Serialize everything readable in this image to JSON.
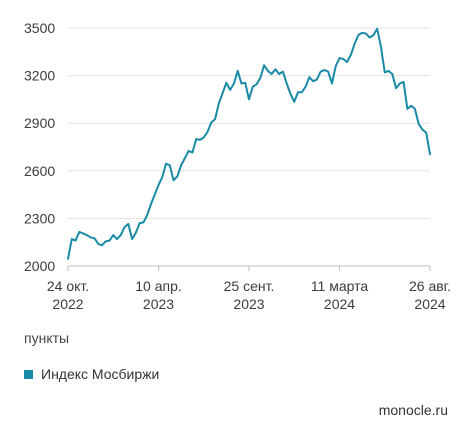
{
  "chart_data": {
    "type": "line",
    "series": [
      {
        "name": "Индекс Мосбиржи",
        "color": "#1a8aa6",
        "points": [
          [
            "2022-10-24",
            2045
          ],
          [
            "2022-10-31",
            2170
          ],
          [
            "2022-11-07",
            2160
          ],
          [
            "2022-11-14",
            2215
          ],
          [
            "2022-11-21",
            2205
          ],
          [
            "2022-11-28",
            2195
          ],
          [
            "2022-12-05",
            2180
          ],
          [
            "2022-12-12",
            2175
          ],
          [
            "2022-12-19",
            2140
          ],
          [
            "2022-12-26",
            2130
          ],
          [
            "2023-01-02",
            2155
          ],
          [
            "2023-01-09",
            2160
          ],
          [
            "2023-01-16",
            2195
          ],
          [
            "2023-01-23",
            2170
          ],
          [
            "2023-01-30",
            2195
          ],
          [
            "2023-02-06",
            2245
          ],
          [
            "2023-02-13",
            2265
          ],
          [
            "2023-02-20",
            2170
          ],
          [
            "2023-02-27",
            2210
          ],
          [
            "2023-03-06",
            2270
          ],
          [
            "2023-03-13",
            2275
          ],
          [
            "2023-03-20",
            2320
          ],
          [
            "2023-03-27",
            2390
          ],
          [
            "2023-04-03",
            2450
          ],
          [
            "2023-04-10",
            2510
          ],
          [
            "2023-04-17",
            2560
          ],
          [
            "2023-04-24",
            2645
          ],
          [
            "2023-05-01",
            2635
          ],
          [
            "2023-05-08",
            2540
          ],
          [
            "2023-05-15",
            2565
          ],
          [
            "2023-05-22",
            2635
          ],
          [
            "2023-05-29",
            2680
          ],
          [
            "2023-06-05",
            2725
          ],
          [
            "2023-06-12",
            2715
          ],
          [
            "2023-06-19",
            2800
          ],
          [
            "2023-06-26",
            2795
          ],
          [
            "2023-07-03",
            2810
          ],
          [
            "2023-07-10",
            2845
          ],
          [
            "2023-07-17",
            2905
          ],
          [
            "2023-07-24",
            2925
          ],
          [
            "2023-07-31",
            3025
          ],
          [
            "2023-08-07",
            3090
          ],
          [
            "2023-08-14",
            3155
          ],
          [
            "2023-08-21",
            3110
          ],
          [
            "2023-08-28",
            3150
          ],
          [
            "2023-09-04",
            3230
          ],
          [
            "2023-09-11",
            3150
          ],
          [
            "2023-09-18",
            3155
          ],
          [
            "2023-09-25",
            3050
          ],
          [
            "2023-10-02",
            3130
          ],
          [
            "2023-10-09",
            3145
          ],
          [
            "2023-10-16",
            3185
          ],
          [
            "2023-10-23",
            3265
          ],
          [
            "2023-10-30",
            3230
          ],
          [
            "2023-11-06",
            3210
          ],
          [
            "2023-11-13",
            3240
          ],
          [
            "2023-11-20",
            3210
          ],
          [
            "2023-11-27",
            3225
          ],
          [
            "2023-12-04",
            3150
          ],
          [
            "2023-12-11",
            3085
          ],
          [
            "2023-12-18",
            3035
          ],
          [
            "2023-12-25",
            3095
          ],
          [
            "2024-01-01",
            3095
          ],
          [
            "2024-01-08",
            3130
          ],
          [
            "2024-01-15",
            3190
          ],
          [
            "2024-01-22",
            3165
          ],
          [
            "2024-01-29",
            3175
          ],
          [
            "2024-02-05",
            3225
          ],
          [
            "2024-02-12",
            3235
          ],
          [
            "2024-02-19",
            3225
          ],
          [
            "2024-02-26",
            3150
          ],
          [
            "2024-03-04",
            3260
          ],
          [
            "2024-03-11",
            3310
          ],
          [
            "2024-03-18",
            3305
          ],
          [
            "2024-03-25",
            3285
          ],
          [
            "2024-04-01",
            3330
          ],
          [
            "2024-04-08",
            3400
          ],
          [
            "2024-04-15",
            3455
          ],
          [
            "2024-04-22",
            3470
          ],
          [
            "2024-04-29",
            3465
          ],
          [
            "2024-05-06",
            3440
          ],
          [
            "2024-05-13",
            3455
          ],
          [
            "2024-05-20",
            3495
          ],
          [
            "2024-05-27",
            3380
          ],
          [
            "2024-06-03",
            3220
          ],
          [
            "2024-06-10",
            3230
          ],
          [
            "2024-06-17",
            3210
          ],
          [
            "2024-06-24",
            3120
          ],
          [
            "2024-07-01",
            3150
          ],
          [
            "2024-07-08",
            3160
          ],
          [
            "2024-07-15",
            2990
          ],
          [
            "2024-07-22",
            3010
          ],
          [
            "2024-07-29",
            2990
          ],
          [
            "2024-08-05",
            2895
          ],
          [
            "2024-08-12",
            2860
          ],
          [
            "2024-08-19",
            2840
          ],
          [
            "2024-08-26",
            2705
          ]
        ]
      }
    ],
    "x_ticks": [
      {
        "date": "2022-10-24",
        "line1": "24 окт.",
        "line2": "2022"
      },
      {
        "date": "2023-04-10",
        "line1": "10 апр.",
        "line2": "2023"
      },
      {
        "date": "2023-09-25",
        "line1": "25 сент.",
        "line2": "2023"
      },
      {
        "date": "2024-03-11",
        "line1": "11 марта",
        "line2": "2024"
      },
      {
        "date": "2024-08-26",
        "line1": "26 авг.",
        "line2": "2024"
      }
    ],
    "y_ticks": [
      2000,
      2300,
      2600,
      2900,
      3200,
      3500
    ],
    "ylim": [
      2000,
      3500
    ],
    "xlim": [
      "2022-10-24",
      "2024-08-26"
    ],
    "grid": "horizontal",
    "ylabel": "пункты",
    "legend_position": "bottom-left"
  },
  "colors": {
    "line": "#1a8aa6",
    "grid": "#e3e3e3",
    "axis": "#bdbdbd",
    "text": "#3c3c3c"
  },
  "source": "monocle.ru"
}
